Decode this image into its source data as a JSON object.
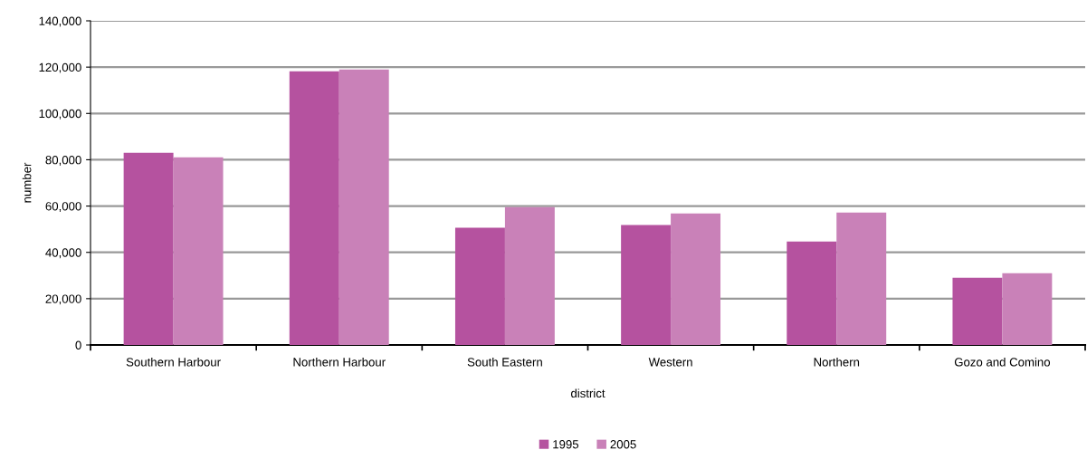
{
  "chart_data": {
    "type": "bar",
    "xlabel": "district",
    "ylabel": "number",
    "categories": [
      "Southern Harbour",
      "Northern Harbour",
      "South Eastern",
      "Western",
      "Northern",
      "Gozo and Comino"
    ],
    "series": [
      {
        "name": "1995",
        "color": "#b5529f",
        "values": [
          83000,
          118200,
          50600,
          51800,
          44700,
          29000
        ]
      },
      {
        "name": "2005",
        "color": "#c981b8",
        "values": [
          81000,
          119000,
          59500,
          56800,
          57200,
          31000
        ]
      }
    ],
    "ylim": [
      0,
      140000
    ],
    "yticks": [
      {
        "value": 0,
        "label": "0"
      },
      {
        "value": 20000,
        "label": "20,000"
      },
      {
        "value": 40000,
        "label": "40,000"
      },
      {
        "value": 60000,
        "label": "60,000"
      },
      {
        "value": 80000,
        "label": "80,000"
      },
      {
        "value": 100000,
        "label": "100,000"
      },
      {
        "value": 120000,
        "label": "120,000"
      },
      {
        "value": 140000,
        "label": "140,000"
      }
    ],
    "grid": "y",
    "legend": "bottom"
  }
}
